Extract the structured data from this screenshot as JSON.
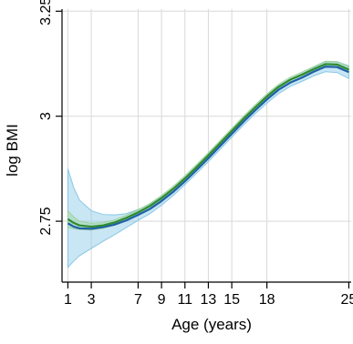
{
  "chart_data": {
    "type": "line",
    "title": "",
    "xlabel": "Age (years)",
    "ylabel": "log BMI",
    "xlim": [
      0.5,
      25.2
    ],
    "ylim": [
      2.605,
      3.255
    ],
    "xticks": [
      1,
      3,
      7,
      9,
      11,
      13,
      15,
      18,
      25
    ],
    "xtick_labels": [
      "1",
      "3",
      "7",
      "9",
      "11",
      "13",
      "15",
      "18",
      "25"
    ],
    "yticks": [
      2.75,
      3,
      3.25
    ],
    "ytick_labels": [
      "2.75",
      "3",
      "3.25"
    ],
    "grid": true,
    "legend": "none",
    "series": [
      {
        "color": "#1f5fa8",
        "band_color": "#87c8e6",
        "x": [
          1,
          1.5,
          2,
          3,
          4,
          5,
          6,
          7,
          8,
          9,
          10,
          11,
          12,
          13,
          14,
          15,
          16,
          17,
          18,
          19,
          20,
          21,
          22,
          23,
          24,
          25
        ],
        "y": [
          2.745,
          2.737,
          2.733,
          2.732,
          2.736,
          2.742,
          2.752,
          2.765,
          2.779,
          2.798,
          2.82,
          2.845,
          2.872,
          2.9,
          2.929,
          2.958,
          2.987,
          3.014,
          3.04,
          3.063,
          3.08,
          3.092,
          3.106,
          3.118,
          3.117,
          3.105
        ],
        "lower": [
          2.64,
          2.655,
          2.668,
          2.685,
          2.702,
          2.718,
          2.735,
          2.752,
          2.768,
          2.788,
          2.811,
          2.837,
          2.864,
          2.892,
          2.921,
          2.95,
          2.979,
          3.006,
          3.031,
          3.054,
          3.071,
          3.083,
          3.096,
          3.106,
          3.104,
          3.09
        ],
        "upper": [
          2.875,
          2.83,
          2.8,
          2.775,
          2.766,
          2.765,
          2.768,
          2.778,
          2.79,
          2.808,
          2.829,
          2.853,
          2.88,
          2.908,
          2.937,
          2.966,
          2.995,
          3.022,
          3.049,
          3.072,
          3.089,
          3.101,
          3.116,
          3.13,
          3.13,
          3.12
        ]
      },
      {
        "color": "#2e8b2e",
        "band_color": "#9ed39e",
        "x": [
          1,
          1.5,
          2,
          3,
          4,
          5,
          6,
          7,
          8,
          9,
          10,
          11,
          12,
          13,
          14,
          15,
          16,
          17,
          18,
          19,
          20,
          21,
          22,
          23,
          24,
          25
        ],
        "y": [
          2.755,
          2.746,
          2.74,
          2.737,
          2.74,
          2.747,
          2.758,
          2.771,
          2.786,
          2.805,
          2.827,
          2.852,
          2.879,
          2.907,
          2.936,
          2.965,
          2.994,
          3.021,
          3.047,
          3.07,
          3.087,
          3.099,
          3.112,
          3.124,
          3.123,
          3.111
        ],
        "lower": [
          2.735,
          2.732,
          2.73,
          2.729,
          2.733,
          2.741,
          2.752,
          2.765,
          2.78,
          2.799,
          2.821,
          2.846,
          2.873,
          2.901,
          2.93,
          2.959,
          2.988,
          3.015,
          3.041,
          3.064,
          3.081,
          3.093,
          3.106,
          3.117,
          3.116,
          3.104
        ],
        "upper": [
          2.775,
          2.76,
          2.75,
          2.745,
          2.747,
          2.753,
          2.764,
          2.777,
          2.792,
          2.811,
          2.833,
          2.858,
          2.885,
          2.913,
          2.942,
          2.971,
          3.0,
          3.027,
          3.053,
          3.076,
          3.093,
          3.105,
          3.118,
          3.131,
          3.13,
          3.118
        ]
      }
    ]
  }
}
